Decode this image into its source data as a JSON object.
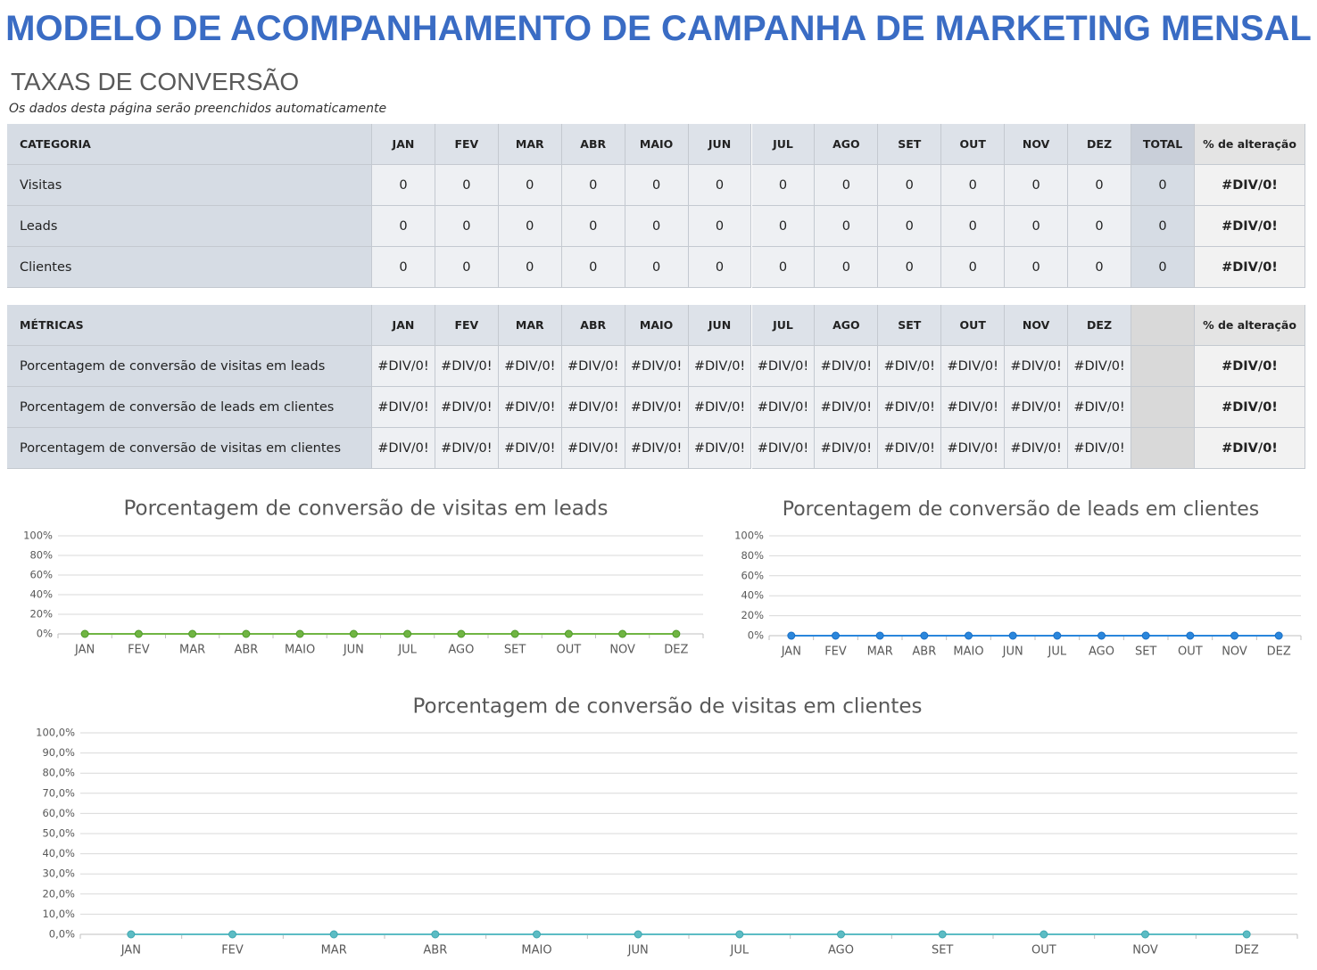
{
  "header": {
    "title": "MODELO DE ACOMPANHAMENTO DE CAMPANHA DE MARKETING MENSAL",
    "section": "TAXAS DE CONVERSÃO",
    "note": "Os dados desta página serão preenchidos automaticamente"
  },
  "table1": {
    "header": [
      "CATEGORIA",
      "JAN",
      "FEV",
      "MAR",
      "ABR",
      "MAIO",
      "JUN",
      "JUL",
      "AGO",
      "SET",
      "OUT",
      "NOV",
      "DEZ",
      "TOTAL",
      "% de alteração"
    ],
    "rows": [
      [
        "Visitas",
        0,
        0,
        0,
        0,
        0,
        0,
        0,
        0,
        0,
        0,
        0,
        0,
        0,
        "#DIV/0!"
      ],
      [
        "Leads",
        0,
        0,
        0,
        0,
        0,
        0,
        0,
        0,
        0,
        0,
        0,
        0,
        0,
        "#DIV/0!"
      ],
      [
        "Clientes",
        0,
        0,
        0,
        0,
        0,
        0,
        0,
        0,
        0,
        0,
        0,
        0,
        0,
        "#DIV/0!"
      ]
    ]
  },
  "table2": {
    "header": [
      "MÉTRICAS",
      "JAN",
      "FEV",
      "MAR",
      "ABR",
      "MAIO",
      "JUN",
      "JUL",
      "AGO",
      "SET",
      "OUT",
      "NOV",
      "DEZ",
      "% de alteração"
    ],
    "rows": [
      [
        "Porcentagem de conversão de visitas em leads",
        "#DIV/0!",
        "#DIV/0!",
        "#DIV/0!",
        "#DIV/0!",
        "#DIV/0!",
        "#DIV/0!",
        "#DIV/0!",
        "#DIV/0!",
        "#DIV/0!",
        "#DIV/0!",
        "#DIV/0!",
        "#DIV/0!",
        "#DIV/0!"
      ],
      [
        "Porcentagem de conversão de leads em clientes",
        "#DIV/0!",
        "#DIV/0!",
        "#DIV/0!",
        "#DIV/0!",
        "#DIV/0!",
        "#DIV/0!",
        "#DIV/0!",
        "#DIV/0!",
        "#DIV/0!",
        "#DIV/0!",
        "#DIV/0!",
        "#DIV/0!",
        "#DIV/0!"
      ],
      [
        "Porcentagem de conversão de visitas em clientes",
        "#DIV/0!",
        "#DIV/0!",
        "#DIV/0!",
        "#DIV/0!",
        "#DIV/0!",
        "#DIV/0!",
        "#DIV/0!",
        "#DIV/0!",
        "#DIV/0!",
        "#DIV/0!",
        "#DIV/0!",
        "#DIV/0!",
        "#DIV/0!"
      ]
    ]
  },
  "chart_data": [
    {
      "type": "line",
      "title": "Porcentagem de conversão de visitas em leads",
      "categories": [
        "JAN",
        "FEV",
        "MAR",
        "ABR",
        "MAIO",
        "JUN",
        "JUL",
        "AGO",
        "SET",
        "OUT",
        "NOV",
        "DEZ"
      ],
      "values": [
        0,
        0,
        0,
        0,
        0,
        0,
        0,
        0,
        0,
        0,
        0,
        0
      ],
      "color": "#70b543",
      "ylim": [
        0,
        100
      ],
      "yticks": [
        {
          "value": 0,
          "label": "0%"
        },
        {
          "value": 20,
          "label": "20%"
        },
        {
          "value": 40,
          "label": "40%"
        },
        {
          "value": 60,
          "label": "60%"
        },
        {
          "value": 80,
          "label": "80%"
        },
        {
          "value": 100,
          "label": "100%"
        }
      ],
      "grid": true
    },
    {
      "type": "line",
      "title": "Porcentagem de conversão de leads em clientes",
      "categories": [
        "JAN",
        "FEV",
        "MAR",
        "ABR",
        "MAIO",
        "JUN",
        "JUL",
        "AGO",
        "SET",
        "OUT",
        "NOV",
        "DEZ"
      ],
      "values": [
        0,
        0,
        0,
        0,
        0,
        0,
        0,
        0,
        0,
        0,
        0,
        0
      ],
      "color": "#2a86dc",
      "ylim": [
        0,
        100
      ],
      "yticks": [
        {
          "value": 0,
          "label": "0%"
        },
        {
          "value": 20,
          "label": "20%"
        },
        {
          "value": 40,
          "label": "40%"
        },
        {
          "value": 60,
          "label": "60%"
        },
        {
          "value": 80,
          "label": "80%"
        },
        {
          "value": 100,
          "label": "100%"
        }
      ],
      "grid": true
    },
    {
      "type": "line",
      "title": "Porcentagem de conversão de visitas em clientes",
      "categories": [
        "JAN",
        "FEV",
        "MAR",
        "ABR",
        "MAIO",
        "JUN",
        "JUL",
        "AGO",
        "SET",
        "OUT",
        "NOV",
        "DEZ"
      ],
      "values": [
        0,
        0,
        0,
        0,
        0,
        0,
        0,
        0,
        0,
        0,
        0,
        0
      ],
      "color": "#5cbcc4",
      "ylim": [
        0,
        100
      ],
      "yticks": [
        {
          "value": 0,
          "label": "0,0%"
        },
        {
          "value": 10,
          "label": "10,0%"
        },
        {
          "value": 20,
          "label": "20,0%"
        },
        {
          "value": 30,
          "label": "30,0%"
        },
        {
          "value": 40,
          "label": "40,0%"
        },
        {
          "value": 50,
          "label": "50,0%"
        },
        {
          "value": 60,
          "label": "60,0%"
        },
        {
          "value": 70,
          "label": "70,0%"
        },
        {
          "value": 80,
          "label": "80,0%"
        },
        {
          "value": 90,
          "label": "90,0%"
        },
        {
          "value": 100,
          "label": "100,0%"
        }
      ],
      "grid": true
    }
  ]
}
